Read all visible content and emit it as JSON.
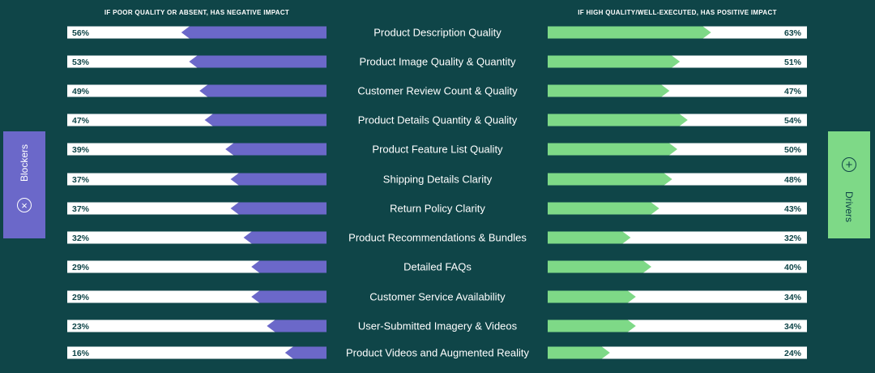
{
  "header_left": "IF POOR QUALITY OR ABSENT, HAS NEGATIVE IMPACT",
  "header_right": "IF HIGH QUALITY/WELL-EXECUTED, HAS POSITIVE IMPACT",
  "blockers_label": "Blockers",
  "drivers_label": "Drivers",
  "blockers_icon": "x-circle-icon",
  "drivers_icon": "plus-circle-icon",
  "colors": {
    "background": "#0f4548",
    "blockers": "#6b68c9",
    "drivers": "#7ed987",
    "track": "#ffffff",
    "text_dark": "#0f4548"
  },
  "chart_data": {
    "type": "bar",
    "categories": [
      "Product Description Quality",
      "Product Image Quality & Quantity",
      "Customer Review Count & Quality",
      "Product Details Quantity & Quality",
      "Product Feature List Quality",
      "Shipping Details Clarity",
      "Return Policy Clarity",
      "Product Recommendations & Bundles",
      "Detailed FAQs",
      "Customer Service Availability",
      "User-Submitted Imagery & Videos",
      "Product Videos and Augmented Reality"
    ],
    "series": [
      {
        "name": "Blockers",
        "values": [
          56,
          53,
          49,
          47,
          39,
          37,
          37,
          32,
          29,
          29,
          23,
          16
        ]
      },
      {
        "name": "Drivers",
        "values": [
          63,
          51,
          47,
          54,
          50,
          48,
          43,
          32,
          40,
          34,
          34,
          24
        ]
      }
    ],
    "ylim": [
      0,
      100
    ],
    "value_format": "%"
  }
}
